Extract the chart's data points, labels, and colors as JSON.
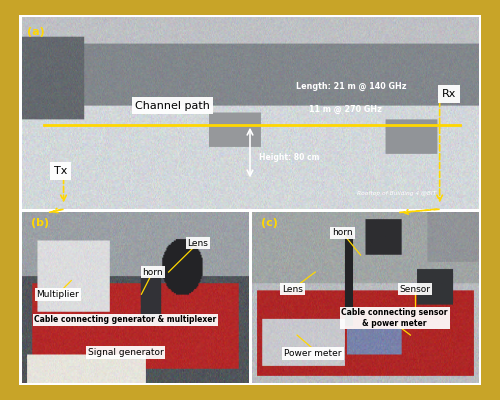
{
  "background_color": "#C8A428",
  "fig_width": 5.0,
  "fig_height": 4.0,
  "dpi": 100,
  "panel_a": {
    "label": "(a)",
    "channel_path_text": "Channel path",
    "length_line1": "Length: 21 m @ 140 GHz",
    "length_line2": "11 m @ 270 GHz",
    "height_text": "Height: 80 cm",
    "tx_text": "Tx",
    "rx_text": "Rx",
    "rooftop_text": "Rooftop of Building 4 @BIT"
  },
  "panel_b": {
    "label": "(b)",
    "ann_lens": "Lens",
    "ann_horn": "horn",
    "ann_multiplier": "Multiplier",
    "ann_cable": "Cable connecting generator & multiplexer",
    "ann_signal": "Signal generator"
  },
  "panel_c": {
    "label": "(c)",
    "ann_horn": "horn",
    "ann_lens": "Lens",
    "ann_sensor": "Sensor",
    "ann_cable": "Cable connecting sensor\n& power meter",
    "ann_power": "Power meter"
  }
}
